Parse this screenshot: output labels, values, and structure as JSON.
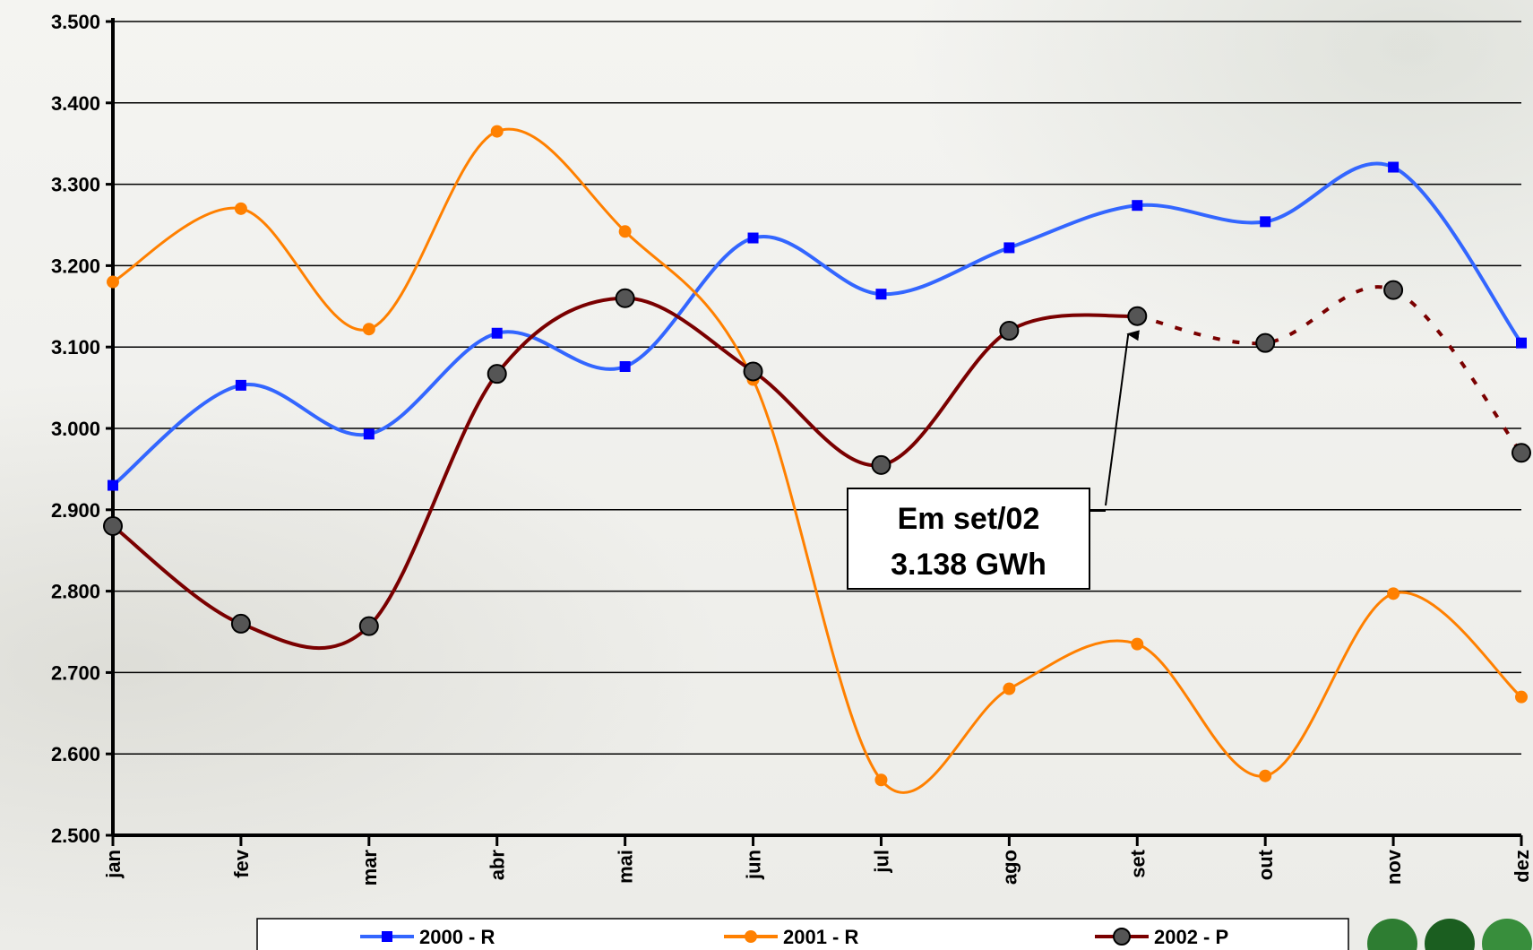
{
  "chart_data": {
    "type": "line",
    "title": "",
    "xlabel": "",
    "ylabel": "",
    "ylim": [
      2500,
      3500
    ],
    "yticks": [
      2500,
      2600,
      2700,
      2800,
      2900,
      3000,
      3100,
      3200,
      3300,
      3400,
      3500
    ],
    "ytick_labels": [
      "2.500",
      "2.600",
      "2.700",
      "2.800",
      "2.900",
      "3.000",
      "3.100",
      "3.200",
      "3.300",
      "3.400",
      "3.500"
    ],
    "categories": [
      "jan",
      "fev",
      "mar",
      "abr",
      "mai",
      "jun",
      "jul",
      "ago",
      "set",
      "out",
      "nov",
      "dez"
    ],
    "grid": true,
    "legend_position": "bottom",
    "series": [
      {
        "name": "2000 - R",
        "color": "#3366ff",
        "marker": "square",
        "values": [
          2930,
          3053,
          2993,
          3117,
          3076,
          3234,
          3165,
          3222,
          3274,
          3254,
          3321,
          3105
        ]
      },
      {
        "name": "2001 - R",
        "color": "#ff8000",
        "marker": "circle",
        "values": [
          3180,
          3270,
          3122,
          3365,
          3242,
          3060,
          2568,
          2680,
          2735,
          2573,
          2797,
          2670
        ]
      },
      {
        "name": "2002 - P",
        "color": "#7a0000",
        "marker": "circle-dark",
        "dashed_from_index": 8,
        "values": [
          2880,
          2760,
          2757,
          3067,
          3160,
          3070,
          2955,
          3120,
          3138,
          3105,
          3170,
          2970
        ]
      }
    ],
    "annotation": {
      "line1": "Em set/02",
      "line2": "3.138 GWh",
      "target_series": 2,
      "target_index": 8
    }
  },
  "icons": {
    "logo": "company-logo-icon"
  }
}
